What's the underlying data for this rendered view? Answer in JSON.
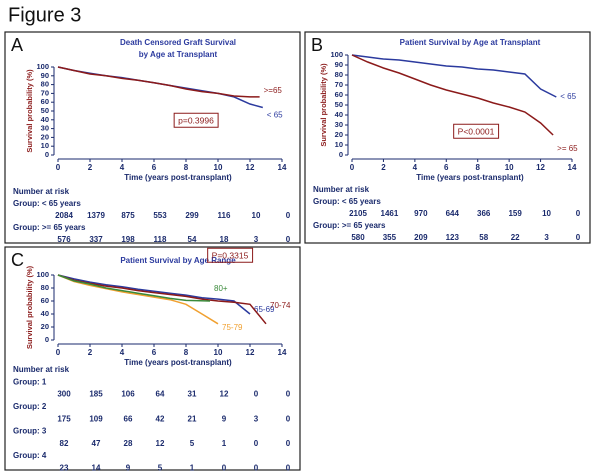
{
  "figure_title": "Figure 3",
  "chart_data": [
    {
      "type": "line",
      "panel": "A",
      "title": [
        "Death Censored Graft Survival",
        "by Age at Transplant"
      ],
      "x_label": "Time (years post-transplant)",
      "y_label": "Survival probability (%)",
      "xlim": [
        0,
        14
      ],
      "xticks": [
        0,
        2,
        4,
        6,
        8,
        10,
        12,
        14
      ],
      "ylim": [
        0,
        100
      ],
      "yticks": [
        0,
        10,
        20,
        30,
        40,
        50,
        60,
        70,
        80,
        90,
        100
      ],
      "p_value": "p=0.3996",
      "series": [
        {
          "name": "< 65",
          "color": "#2b3a9e",
          "x": [
            0,
            1,
            2,
            3,
            4,
            5,
            6,
            7,
            8,
            9,
            10,
            11,
            12,
            12.8
          ],
          "values": [
            100,
            96,
            93,
            90,
            88,
            85,
            82,
            79,
            76,
            73,
            70,
            66,
            58,
            54
          ]
        },
        {
          "name": ">=65",
          "color": "#8b1a1a",
          "x": [
            0,
            1,
            2,
            3,
            4,
            5,
            6,
            7,
            8,
            9,
            10,
            11,
            12,
            12.6
          ],
          "values": [
            100,
            96,
            92,
            90,
            87,
            85,
            82,
            79,
            75,
            72,
            70,
            67,
            66,
            66
          ]
        }
      ],
      "risk_table": {
        "title": "Number at risk",
        "groups": [
          {
            "label": "Group: < 65 years",
            "counts": [
              2084,
              1379,
              875,
              553,
              299,
              116,
              10,
              0
            ]
          },
          {
            "label": "Group: >= 65 years",
            "counts": [
              576,
              337,
              198,
              118,
              54,
              18,
              3,
              0
            ]
          }
        ]
      }
    },
    {
      "type": "line",
      "panel": "B",
      "title": [
        "Patient Survival by Age at Transplant"
      ],
      "x_label": "Time (years post-transplant)",
      "y_label": "Survival probability (%)",
      "xlim": [
        0,
        14
      ],
      "xticks": [
        0,
        2,
        4,
        6,
        8,
        10,
        12,
        14
      ],
      "ylim": [
        0,
        100
      ],
      "yticks": [
        0,
        10,
        20,
        30,
        40,
        50,
        60,
        70,
        80,
        90,
        100
      ],
      "p_value": "P<0.0001",
      "series": [
        {
          "name": "< 65",
          "color": "#2b3a9e",
          "x": [
            0,
            1,
            2,
            3,
            4,
            5,
            6,
            7,
            8,
            9,
            10,
            11,
            12,
            13
          ],
          "values": [
            100,
            98,
            96,
            95,
            93,
            91,
            89,
            88,
            86,
            85,
            83,
            81,
            66,
            58
          ]
        },
        {
          "name": ">= 65",
          "color": "#8b1a1a",
          "x": [
            0,
            1,
            2,
            3,
            4,
            5,
            6,
            7,
            8,
            9,
            10,
            11,
            12,
            12.8
          ],
          "values": [
            100,
            93,
            87,
            82,
            76,
            70,
            65,
            61,
            57,
            52,
            48,
            43,
            32,
            20
          ]
        }
      ],
      "risk_table": {
        "title": "Number at risk",
        "groups": [
          {
            "label": "Group: < 65 years",
            "counts": [
              2105,
              1461,
              970,
              644,
              366,
              159,
              10,
              0
            ]
          },
          {
            "label": "Group: >= 65 years",
            "counts": [
              580,
              355,
              209,
              123,
              58,
              22,
              3,
              0
            ]
          }
        ]
      }
    },
    {
      "type": "line",
      "panel": "C",
      "title": [
        "Patient Survival by Age Range"
      ],
      "x_label": "Time (years post-transplant)",
      "y_label": "Survival probability (%)",
      "xlim": [
        0,
        14
      ],
      "xticks": [
        0,
        2,
        4,
        6,
        8,
        10,
        12,
        14
      ],
      "ylim": [
        0,
        100
      ],
      "yticks": [
        0,
        20,
        40,
        60,
        80,
        100
      ],
      "p_value": "P=0.3315",
      "series": [
        {
          "name": "65-69",
          "color": "#2b3a9e",
          "x": [
            0,
            1,
            2,
            3,
            4,
            5,
            6,
            7,
            8,
            9,
            10,
            11,
            12
          ],
          "values": [
            100,
            94,
            89,
            85,
            82,
            78,
            75,
            72,
            69,
            65,
            63,
            60,
            40
          ]
        },
        {
          "name": "70-74",
          "color": "#8b1a1a",
          "x": [
            0,
            1,
            2,
            3,
            4,
            5,
            6,
            7,
            8,
            9,
            10,
            11,
            12,
            13
          ],
          "values": [
            100,
            92,
            87,
            83,
            80,
            76,
            73,
            70,
            67,
            63,
            60,
            58,
            55,
            25
          ]
        },
        {
          "name": "75-79",
          "color": "#f0a030",
          "x": [
            0,
            1,
            2,
            3,
            4,
            5,
            6,
            7,
            8,
            9,
            10
          ],
          "values": [
            100,
            90,
            84,
            79,
            74,
            70,
            66,
            62,
            55,
            40,
            25
          ]
        },
        {
          "name": "80+",
          "color": "#3a8a3a",
          "x": [
            0,
            1,
            2,
            3,
            4,
            5,
            6,
            7,
            8,
            9.5
          ],
          "values": [
            100,
            91,
            86,
            80,
            76,
            72,
            68,
            64,
            61,
            60
          ]
        }
      ],
      "risk_table": {
        "title": "Number at risk",
        "groups": [
          {
            "label": "Group: 1",
            "counts": [
              300,
              185,
              106,
              64,
              31,
              12,
              0,
              0
            ]
          },
          {
            "label": "Group: 2",
            "counts": [
              175,
              109,
              66,
              42,
              21,
              9,
              3,
              0
            ]
          },
          {
            "label": "Group: 3",
            "counts": [
              82,
              47,
              28,
              12,
              5,
              1,
              0,
              0
            ]
          },
          {
            "label": "Group: 4",
            "counts": [
              23,
              14,
              9,
              5,
              1,
              0,
              0,
              0
            ]
          }
        ]
      }
    }
  ]
}
